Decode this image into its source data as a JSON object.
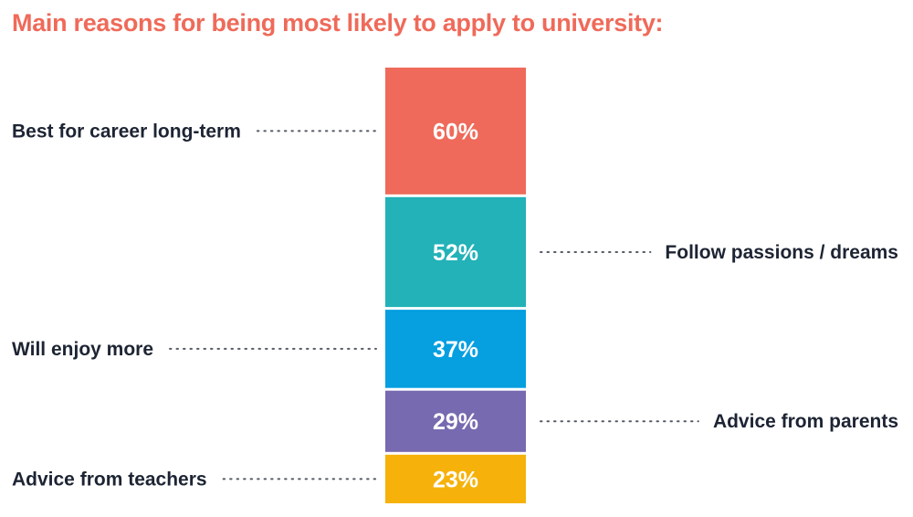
{
  "chart_data": {
    "type": "bar",
    "title": "Main reasons for being most likely to apply to university:",
    "categories": [
      "Best for career long-term",
      "Follow passions / dreams",
      "Will enjoy more",
      "Advice from parents",
      "Advice from teachers"
    ],
    "values": [
      60,
      52,
      37,
      29,
      23
    ],
    "value_labels": [
      "60%",
      "52%",
      "37%",
      "29%",
      "23%"
    ],
    "label_sides": [
      "left",
      "right",
      "left",
      "right",
      "left"
    ],
    "colors": [
      "#ef6a5a",
      "#22b2b8",
      "#069fe0",
      "#776ab0",
      "#f6b20a"
    ],
    "unit": "%",
    "grid": false,
    "legend": "none"
  }
}
